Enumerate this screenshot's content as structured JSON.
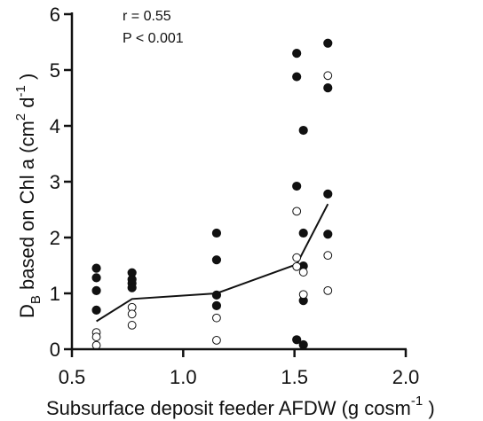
{
  "chart_data": {
    "type": "scatter",
    "xlabel": {
      "main": "Subsurface deposit feeder AFDW (g cosm",
      "sup": "-1",
      "close": " )"
    },
    "ylabel": {
      "main": "D",
      "sub": "B",
      "mid": " based on Chl a  (cm",
      "sup1": "2",
      "mid2": " d",
      "sup2": "-1",
      "close": " )"
    },
    "annotations": {
      "r": "r = 0.55",
      "p": "P < 0.001"
    },
    "xlim": [
      0.5,
      2.0
    ],
    "ylim": [
      0,
      6
    ],
    "x_ticks": [
      "0.5",
      "1.0",
      "1.5",
      "2.0"
    ],
    "y_ticks": [
      "0",
      "1",
      "2",
      "3",
      "4",
      "5",
      "6"
    ],
    "grid": false,
    "series": [
      {
        "marker": "filled-circle",
        "color": "#111111",
        "points": [
          [
            0.61,
            1.45
          ],
          [
            0.61,
            1.28
          ],
          [
            0.61,
            1.05
          ],
          [
            0.61,
            0.7
          ],
          [
            0.77,
            1.37
          ],
          [
            0.77,
            1.25
          ],
          [
            0.77,
            1.18
          ],
          [
            0.77,
            1.1
          ],
          [
            1.15,
            2.08
          ],
          [
            1.15,
            1.6
          ],
          [
            1.15,
            0.97
          ],
          [
            1.15,
            0.78
          ],
          [
            1.51,
            5.3
          ],
          [
            1.51,
            4.88
          ],
          [
            1.51,
            2.92
          ],
          [
            1.51,
            0.17
          ],
          [
            1.54,
            3.92
          ],
          [
            1.54,
            2.08
          ],
          [
            1.54,
            1.49
          ],
          [
            1.54,
            0.87
          ],
          [
            1.54,
            0.08
          ],
          [
            1.65,
            5.48
          ],
          [
            1.65,
            4.68
          ],
          [
            1.65,
            2.78
          ],
          [
            1.65,
            2.06
          ]
        ]
      },
      {
        "marker": "open-circle",
        "color": "#111111",
        "points": [
          [
            0.61,
            0.3
          ],
          [
            0.61,
            0.22
          ],
          [
            0.61,
            0.07
          ],
          [
            0.77,
            0.75
          ],
          [
            0.77,
            0.63
          ],
          [
            0.77,
            0.43
          ],
          [
            1.15,
            0.56
          ],
          [
            1.15,
            0.16
          ],
          [
            1.51,
            2.47
          ],
          [
            1.51,
            1.64
          ],
          [
            1.51,
            1.48
          ],
          [
            1.54,
            1.38
          ],
          [
            1.54,
            0.98
          ],
          [
            1.65,
            4.9
          ],
          [
            1.65,
            1.68
          ],
          [
            1.65,
            1.05
          ]
        ]
      },
      {
        "type": "line",
        "color": "#111111",
        "points": [
          [
            0.61,
            0.5
          ],
          [
            0.77,
            0.9
          ],
          [
            1.15,
            1.0
          ],
          [
            1.51,
            1.52
          ],
          [
            1.65,
            2.6
          ]
        ]
      }
    ]
  }
}
